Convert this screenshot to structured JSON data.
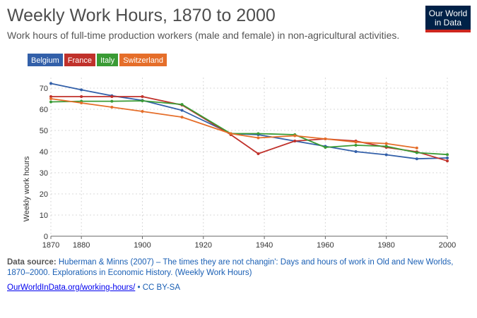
{
  "header": {
    "title": "Weekly Work Hours, 1870 to 2000",
    "subtitle": "Work hours of full-time production workers (male and female) in non-agricultural activities.",
    "logo_line1": "Our World",
    "logo_line2": "in Data"
  },
  "chart_data": {
    "type": "line",
    "title": "Weekly Work Hours, 1870 to 2000",
    "ylabel": "Weekly work hours",
    "xlabel": "",
    "xlim": [
      1870,
      2000
    ],
    "ylim": [
      0,
      75
    ],
    "x_ticks": [
      "1870",
      "1880",
      "1900",
      "1920",
      "1940",
      "1960",
      "1980",
      "2000"
    ],
    "y_ticks": [
      "0",
      "10",
      "20",
      "30",
      "40",
      "50",
      "60",
      "70"
    ],
    "grid": true,
    "legend": "top-left",
    "series": [
      {
        "name": "Belgium",
        "color": "#3360a9",
        "points": [
          [
            1870,
            72.2
          ],
          [
            1880,
            69.2
          ],
          [
            1890,
            66.4
          ],
          [
            1900,
            64.2
          ],
          [
            1913,
            59.5
          ],
          [
            1929,
            48.5
          ],
          [
            1938,
            48.0
          ],
          [
            1950,
            45.0
          ],
          [
            1960,
            42.5
          ],
          [
            1970,
            40.0
          ],
          [
            1980,
            38.5
          ],
          [
            1990,
            36.6
          ],
          [
            2000,
            37.0
          ]
        ]
      },
      {
        "name": "France",
        "color": "#c0312b",
        "points": [
          [
            1870,
            66.0
          ],
          [
            1880,
            66.0
          ],
          [
            1890,
            66.0
          ],
          [
            1900,
            66.0
          ],
          [
            1913,
            62.0
          ],
          [
            1929,
            48.0
          ],
          [
            1938,
            39.0
          ],
          [
            1950,
            45.0
          ],
          [
            1960,
            46.0
          ],
          [
            1970,
            45.0
          ],
          [
            1980,
            42.0
          ],
          [
            1990,
            39.9
          ],
          [
            2000,
            35.6
          ]
        ]
      },
      {
        "name": "Italy",
        "color": "#3a9b35",
        "points": [
          [
            1870,
            63.5
          ],
          [
            1880,
            63.8
          ],
          [
            1890,
            63.8
          ],
          [
            1900,
            64.0
          ],
          [
            1913,
            62.3
          ],
          [
            1929,
            48.5
          ],
          [
            1938,
            48.5
          ],
          [
            1950,
            48.0
          ],
          [
            1960,
            42.0
          ],
          [
            1970,
            43.0
          ],
          [
            1980,
            42.5
          ],
          [
            1990,
            39.5
          ],
          [
            2000,
            38.6
          ]
        ]
      },
      {
        "name": "Switzerland",
        "color": "#e56e2a",
        "points": [
          [
            1870,
            65.0
          ],
          [
            1880,
            63.0
          ],
          [
            1890,
            61.0
          ],
          [
            1900,
            59.0
          ],
          [
            1913,
            56.3
          ],
          [
            1929,
            48.5
          ],
          [
            1938,
            46.5
          ],
          [
            1950,
            47.5
          ],
          [
            1960,
            46.0
          ],
          [
            1970,
            44.5
          ],
          [
            1980,
            43.8
          ],
          [
            1990,
            41.7
          ]
        ]
      }
    ]
  },
  "footer": {
    "source_label": "Data source:",
    "source_text": "Huberman & Minns (2007) – The times they are not changin': Days and hours of work in Old and New Worlds, 1870–2000. Explorations in Economic History. (Weekly Work Hours)",
    "link_text": "OurWorldInData.org/working-hours/",
    "license_text": " • CC BY-SA"
  }
}
